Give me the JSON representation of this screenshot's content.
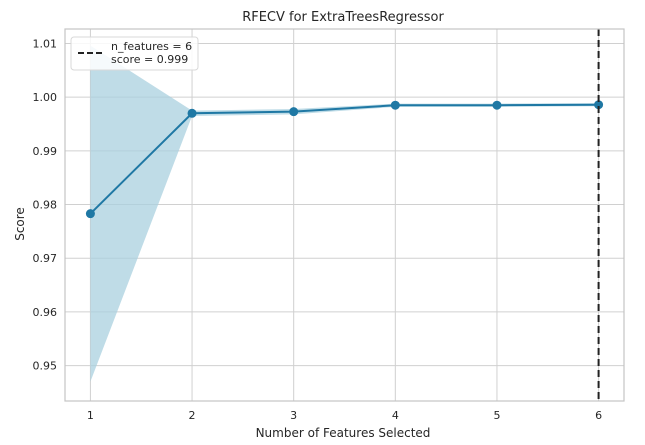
{
  "chart_data": {
    "type": "line",
    "title": "RFECV for ExtraTreesRegressor",
    "xlabel": "Number of Features Selected",
    "ylabel": "Score",
    "x": [
      1,
      2,
      3,
      4,
      5,
      6
    ],
    "series": [
      {
        "values": [
          0.9783,
          0.997,
          0.9973,
          0.9985,
          0.9985,
          0.9986
        ],
        "lower": [
          0.947,
          0.9965,
          0.9968,
          0.9982,
          0.9982,
          0.9983
        ],
        "upper": [
          1.0096,
          0.9975,
          0.9978,
          0.9988,
          0.9988,
          0.9989
        ]
      }
    ],
    "xlim": [
      0.75,
      6.25
    ],
    "ylim": [
      0.9434,
      1.0127
    ],
    "xticks": [
      1,
      2,
      3,
      4,
      5,
      6
    ],
    "yticks": [
      0.95,
      0.96,
      0.97,
      0.98,
      0.99,
      1.0,
      1.01
    ],
    "ytick_labels": [
      "0.95",
      "0.96",
      "0.97",
      "0.98",
      "0.99",
      "1.00",
      "1.01"
    ],
    "vline": 6,
    "grid": true,
    "legend": {
      "placement": "top-left",
      "lines": [
        "n_features = 6",
        "score = 0.999"
      ]
    },
    "colors": {
      "line": "#1f78a4",
      "band": "#a9d0df",
      "vline": "#222222",
      "grid": "#d0d0d0",
      "frame": "#c4c4c4"
    }
  }
}
